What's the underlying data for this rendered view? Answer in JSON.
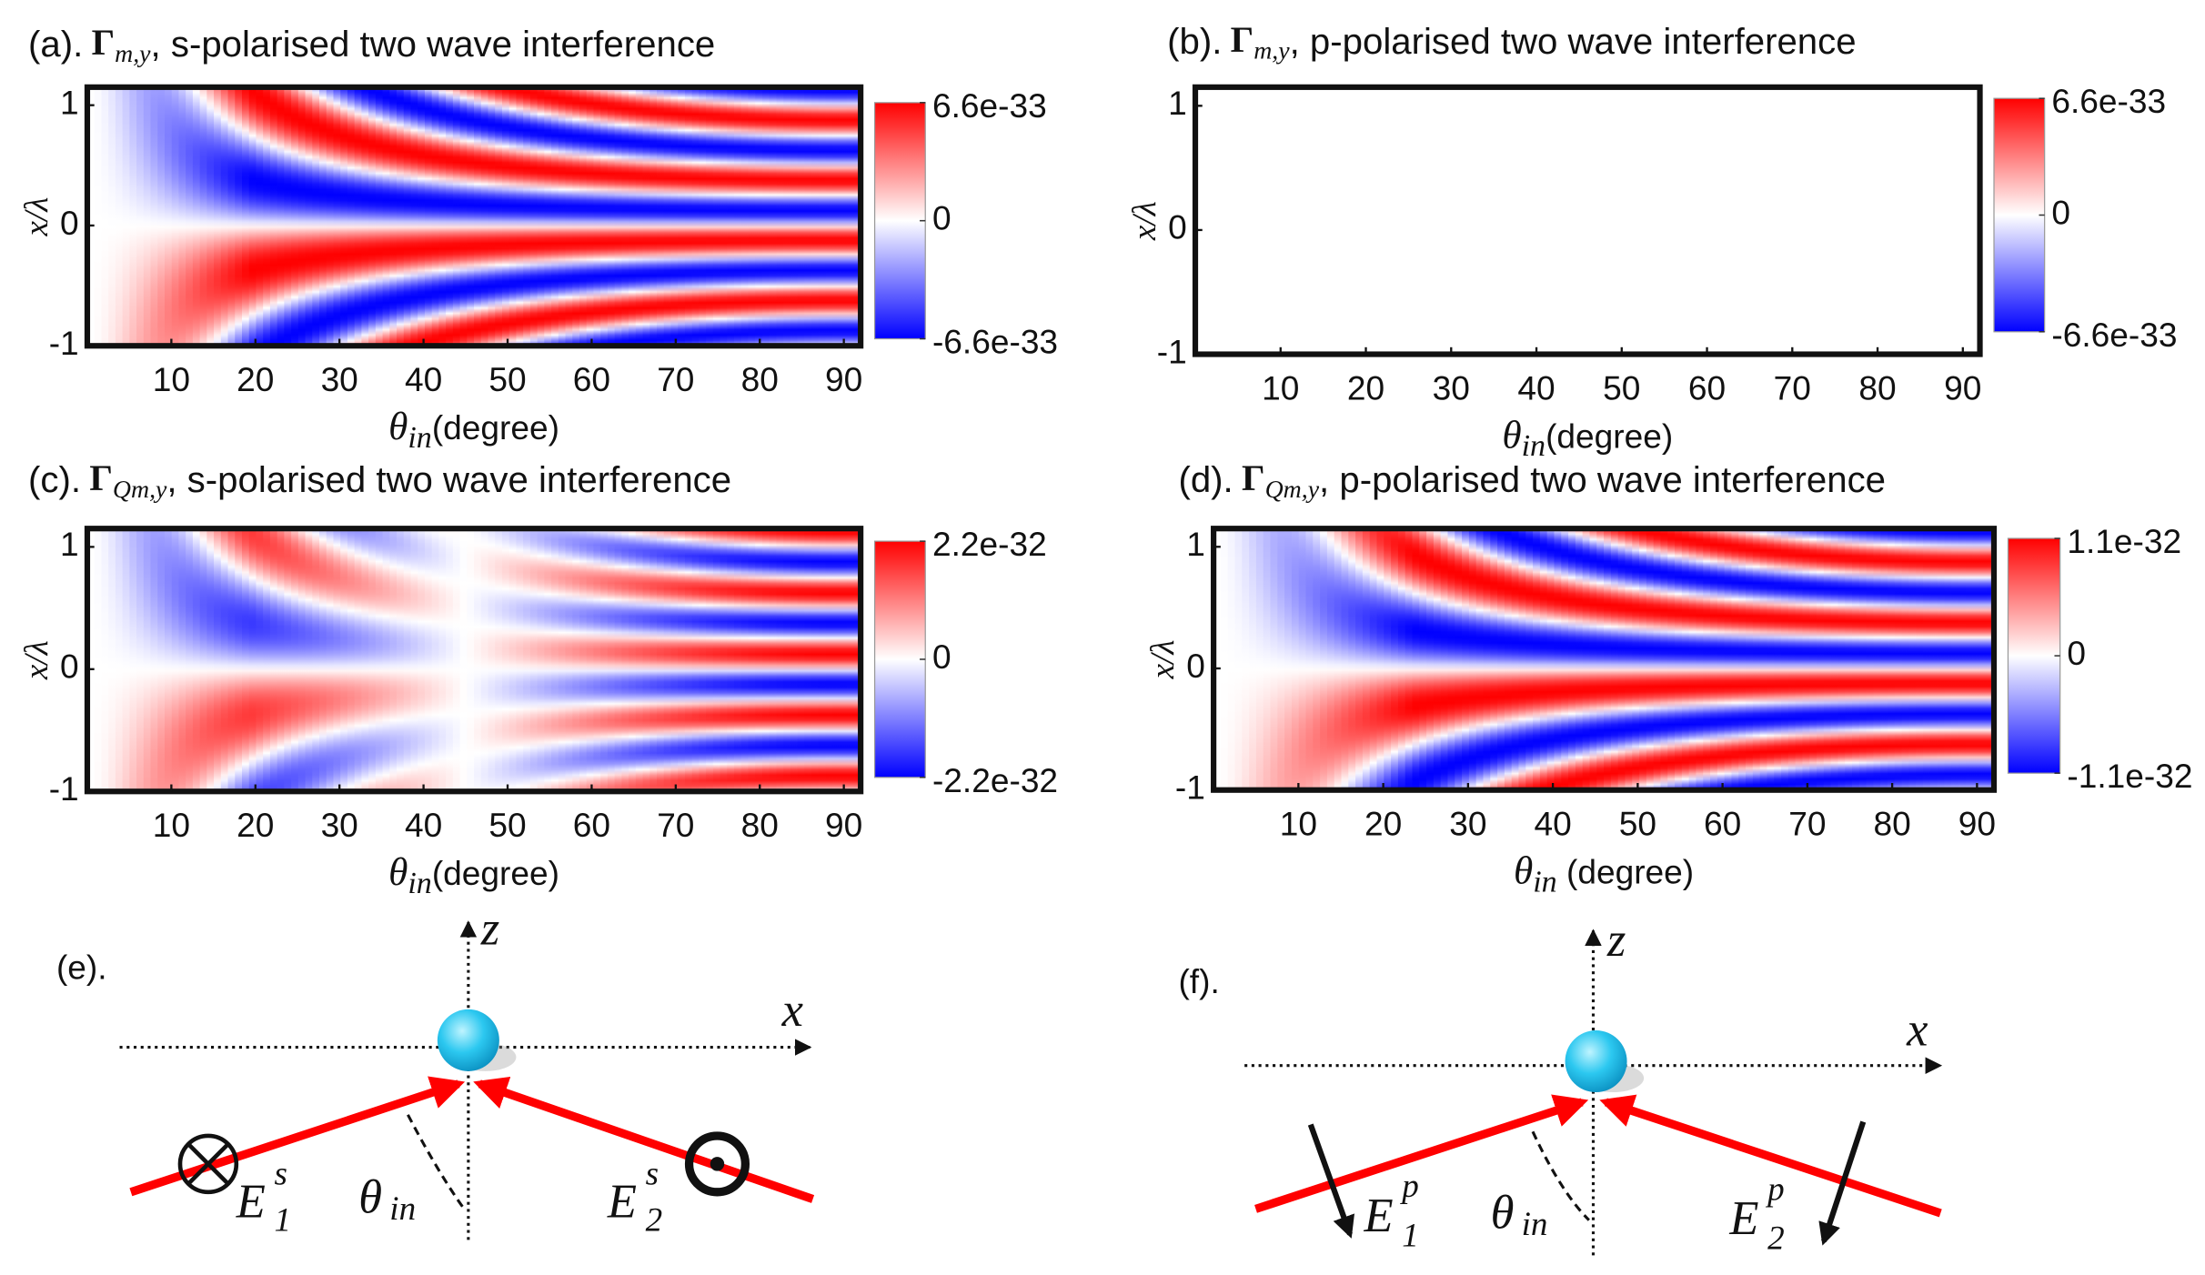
{
  "chart_data": [
    {
      "type": "heatmap",
      "title": {
        "label": "(a).",
        "symbol": "Γ",
        "subscript": "m,y",
        "text": ", s-polarised two wave interference"
      },
      "xlabel": {
        "symbol": "θ",
        "subscript": "in",
        "text": "(degree)"
      },
      "ylabel": "x/λ",
      "xlim": [
        0,
        92
      ],
      "xticks": [
        10,
        20,
        30,
        40,
        50,
        60,
        70,
        80,
        90
      ],
      "ylim": [
        -1,
        1.15
      ],
      "yticks": [
        -1,
        0,
        1
      ],
      "clim": [
        -6.6e-33,
        6.6e-33
      ],
      "cticks": [
        {
          "value": -6.6e-33,
          "label": "-6.6e-33"
        },
        0,
        {
          "value": 6.6e-33,
          "label": "6.6e-33"
        }
      ],
      "colormap": [
        "#0000ff",
        "#ffffff",
        "#ff0000"
      ]
    },
    {
      "type": "heatmap",
      "title": {
        "label": "(b).",
        "symbol": "Γ",
        "subscript": "m,y",
        "text": ", p-polarised two wave interference"
      },
      "xlabel": {
        "symbol": "θ",
        "subscript": "in",
        "text": "(degree)"
      },
      "ylabel": "x/λ",
      "xlim": [
        0,
        92
      ],
      "xticks": [
        10,
        20,
        30,
        40,
        50,
        60,
        70,
        80,
        90
      ],
      "ylim": [
        -1,
        1.15
      ],
      "yticks": [
        -1,
        0,
        1
      ],
      "clim": [
        -6.6e-33,
        6.6e-33
      ],
      "cticks": [
        {
          "value": -6.6e-33,
          "label": "-6.6e-33"
        },
        0,
        {
          "value": 6.6e-33,
          "label": "6.6e-33"
        }
      ],
      "colormap": [
        "#0000ff",
        "#ffffff",
        "#ff0000"
      ]
    },
    {
      "type": "heatmap",
      "title": {
        "label": "(c).",
        "symbol": "Γ",
        "subscript": "Qm,y",
        "text": ", s-polarised two wave interference"
      },
      "xlabel": {
        "symbol": "θ",
        "subscript": "in",
        "text": "(degree)"
      },
      "ylabel": "x/λ",
      "xlim": [
        0,
        92
      ],
      "xticks": [
        10,
        20,
        30,
        40,
        50,
        60,
        70,
        80,
        90
      ],
      "ylim": [
        -1,
        1.15
      ],
      "yticks": [
        -1,
        0,
        1
      ],
      "clim": [
        -2.2e-32,
        2.2e-32
      ],
      "cticks": [
        {
          "value": -2.2e-32,
          "label": "-2.2e-32"
        },
        0,
        {
          "value": 2.2e-32,
          "label": "2.2e-32"
        }
      ],
      "colormap": [
        "#0000ff",
        "#ffffff",
        "#ff0000"
      ]
    },
    {
      "type": "heatmap",
      "title": {
        "label": "(d).",
        "symbol": "Γ",
        "subscript": "Qm,y",
        "text": ", p-polarised two wave interference"
      },
      "xlabel": {
        "symbol": "θ",
        "subscript": "in",
        "text": " (degree)"
      },
      "ylabel": "x/λ",
      "xlim": [
        0,
        92
      ],
      "xticks": [
        10,
        20,
        30,
        40,
        50,
        60,
        70,
        80,
        90
      ],
      "ylim": [
        -1,
        1.15
      ],
      "yticks": [
        -1,
        0,
        1
      ],
      "clim": [
        -1.1e-32,
        1.1e-32
      ],
      "cticks": [
        {
          "value": -1.1e-32,
          "label": "-1.1e-32"
        },
        0,
        {
          "value": 1.1e-32,
          "label": "1.1e-32"
        }
      ],
      "colormap": [
        "#0000ff",
        "#ffffff",
        "#ff0000"
      ]
    }
  ],
  "diagrams": [
    {
      "label": "(e).",
      "z": "z",
      "x": "x",
      "theta": "θ",
      "theta_sub": "in",
      "left_field": {
        "symbol": "E",
        "subscript": "1",
        "superscript": "s"
      },
      "right_field": {
        "symbol": "E",
        "subscript": "2",
        "superscript": "s"
      }
    },
    {
      "label": "(f).",
      "z": "z",
      "x": "x",
      "theta": "θ",
      "theta_sub": "in",
      "left_field": {
        "symbol": "E",
        "subscript": "1",
        "superscript": "p"
      },
      "right_field": {
        "symbol": "E",
        "subscript": "2",
        "superscript": "p"
      }
    }
  ]
}
